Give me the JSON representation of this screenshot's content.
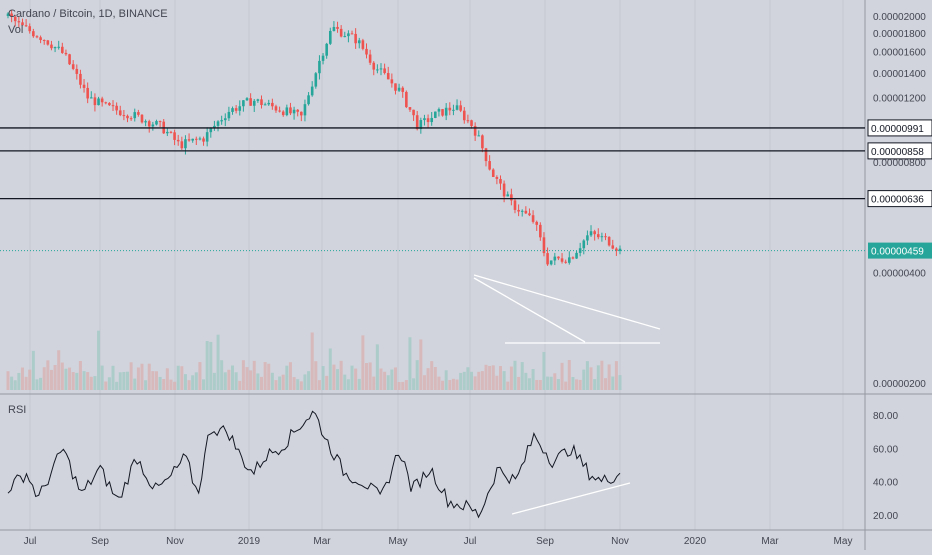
{
  "header": {
    "symbol": "Cardano / Bitcoin, 1D, BINANCE",
    "volume_label": "Vol",
    "rsi_label": "RSI"
  },
  "colors": {
    "background": "#d1d4dc",
    "up": "#26a69a",
    "down": "#ef5350",
    "price_line": "#26a69a",
    "level_line": "#131722",
    "trend_line": "#ffffff",
    "rsi_line": "#131722"
  },
  "chart_data": {
    "type": "candlestick",
    "x_axis": {
      "ticks": [
        "Jul",
        "Sep",
        "Nov",
        "2019",
        "Mar",
        "May",
        "Jul",
        "Sep",
        "Nov",
        "2020",
        "Mar",
        "May"
      ]
    },
    "price_axis": {
      "scale": "log",
      "ticks": [
        "0.00002000",
        "0.00001800",
        "0.00001600",
        "0.00001400",
        "0.00001200",
        "0.00000800",
        "0.00000400",
        "0.00000200"
      ]
    },
    "horizontal_levels": [
      "0.00000991",
      "0.00000858",
      "0.00000636"
    ],
    "last_price": "0.00000459",
    "rsi_axis": {
      "ticks": [
        "80.00",
        "60.00",
        "40.00",
        "20.00"
      ]
    },
    "price_path": [
      [
        0,
        2e-05
      ],
      [
        2,
        1.88e-05
      ],
      [
        6,
        1.73e-05
      ],
      [
        9,
        1.58e-05
      ],
      [
        13,
        1.2e-05
      ],
      [
        16,
        1.13e-05
      ],
      [
        20,
        1.08e-05
      ],
      [
        25,
        1e-05
      ],
      [
        28,
        8.9e-06
      ],
      [
        32,
        9.3e-06
      ],
      [
        36,
        1.1e-05
      ],
      [
        40,
        1.18e-05
      ],
      [
        44,
        1.12e-05
      ],
      [
        48,
        1.06e-05
      ],
      [
        50,
        1.36e-05
      ],
      [
        53,
        1.86e-05
      ],
      [
        57,
        1.72e-05
      ],
      [
        60,
        1.45e-05
      ],
      [
        64,
        1.25e-05
      ],
      [
        67,
        1e-05
      ],
      [
        70,
        1.08e-05
      ],
      [
        73,
        1.13e-05
      ],
      [
        76,
        1e-05
      ],
      [
        79,
        7.5e-06
      ],
      [
        82,
        6.2e-06
      ],
      [
        86,
        5.5e-06
      ],
      [
        88,
        4.3e-06
      ],
      [
        92,
        4.4e-06
      ],
      [
        95,
        5.1e-06
      ],
      [
        98,
        4.9e-06
      ],
      [
        100,
        4.6e-06
      ]
    ],
    "rsi_path": [
      [
        0,
        36
      ],
      [
        3,
        45
      ],
      [
        5,
        30
      ],
      [
        9,
        60
      ],
      [
        12,
        32
      ],
      [
        15,
        48
      ],
      [
        18,
        28
      ],
      [
        21,
        55
      ],
      [
        24,
        35
      ],
      [
        26,
        40
      ],
      [
        29,
        55
      ],
      [
        31,
        32
      ],
      [
        33,
        72
      ],
      [
        36,
        70
      ],
      [
        38,
        55
      ],
      [
        40,
        45
      ],
      [
        42,
        55
      ],
      [
        45,
        62
      ],
      [
        48,
        75
      ],
      [
        50,
        82
      ],
      [
        52,
        65
      ],
      [
        55,
        45
      ],
      [
        58,
        40
      ],
      [
        61,
        30
      ],
      [
        64,
        60
      ],
      [
        66,
        35
      ],
      [
        69,
        48
      ],
      [
        72,
        28
      ],
      [
        75,
        25
      ],
      [
        77,
        20
      ],
      [
        80,
        48
      ],
      [
        83,
        40
      ],
      [
        86,
        68
      ],
      [
        89,
        52
      ],
      [
        92,
        60
      ],
      [
        95,
        45
      ],
      [
        97,
        40
      ],
      [
        100,
        45
      ]
    ]
  }
}
